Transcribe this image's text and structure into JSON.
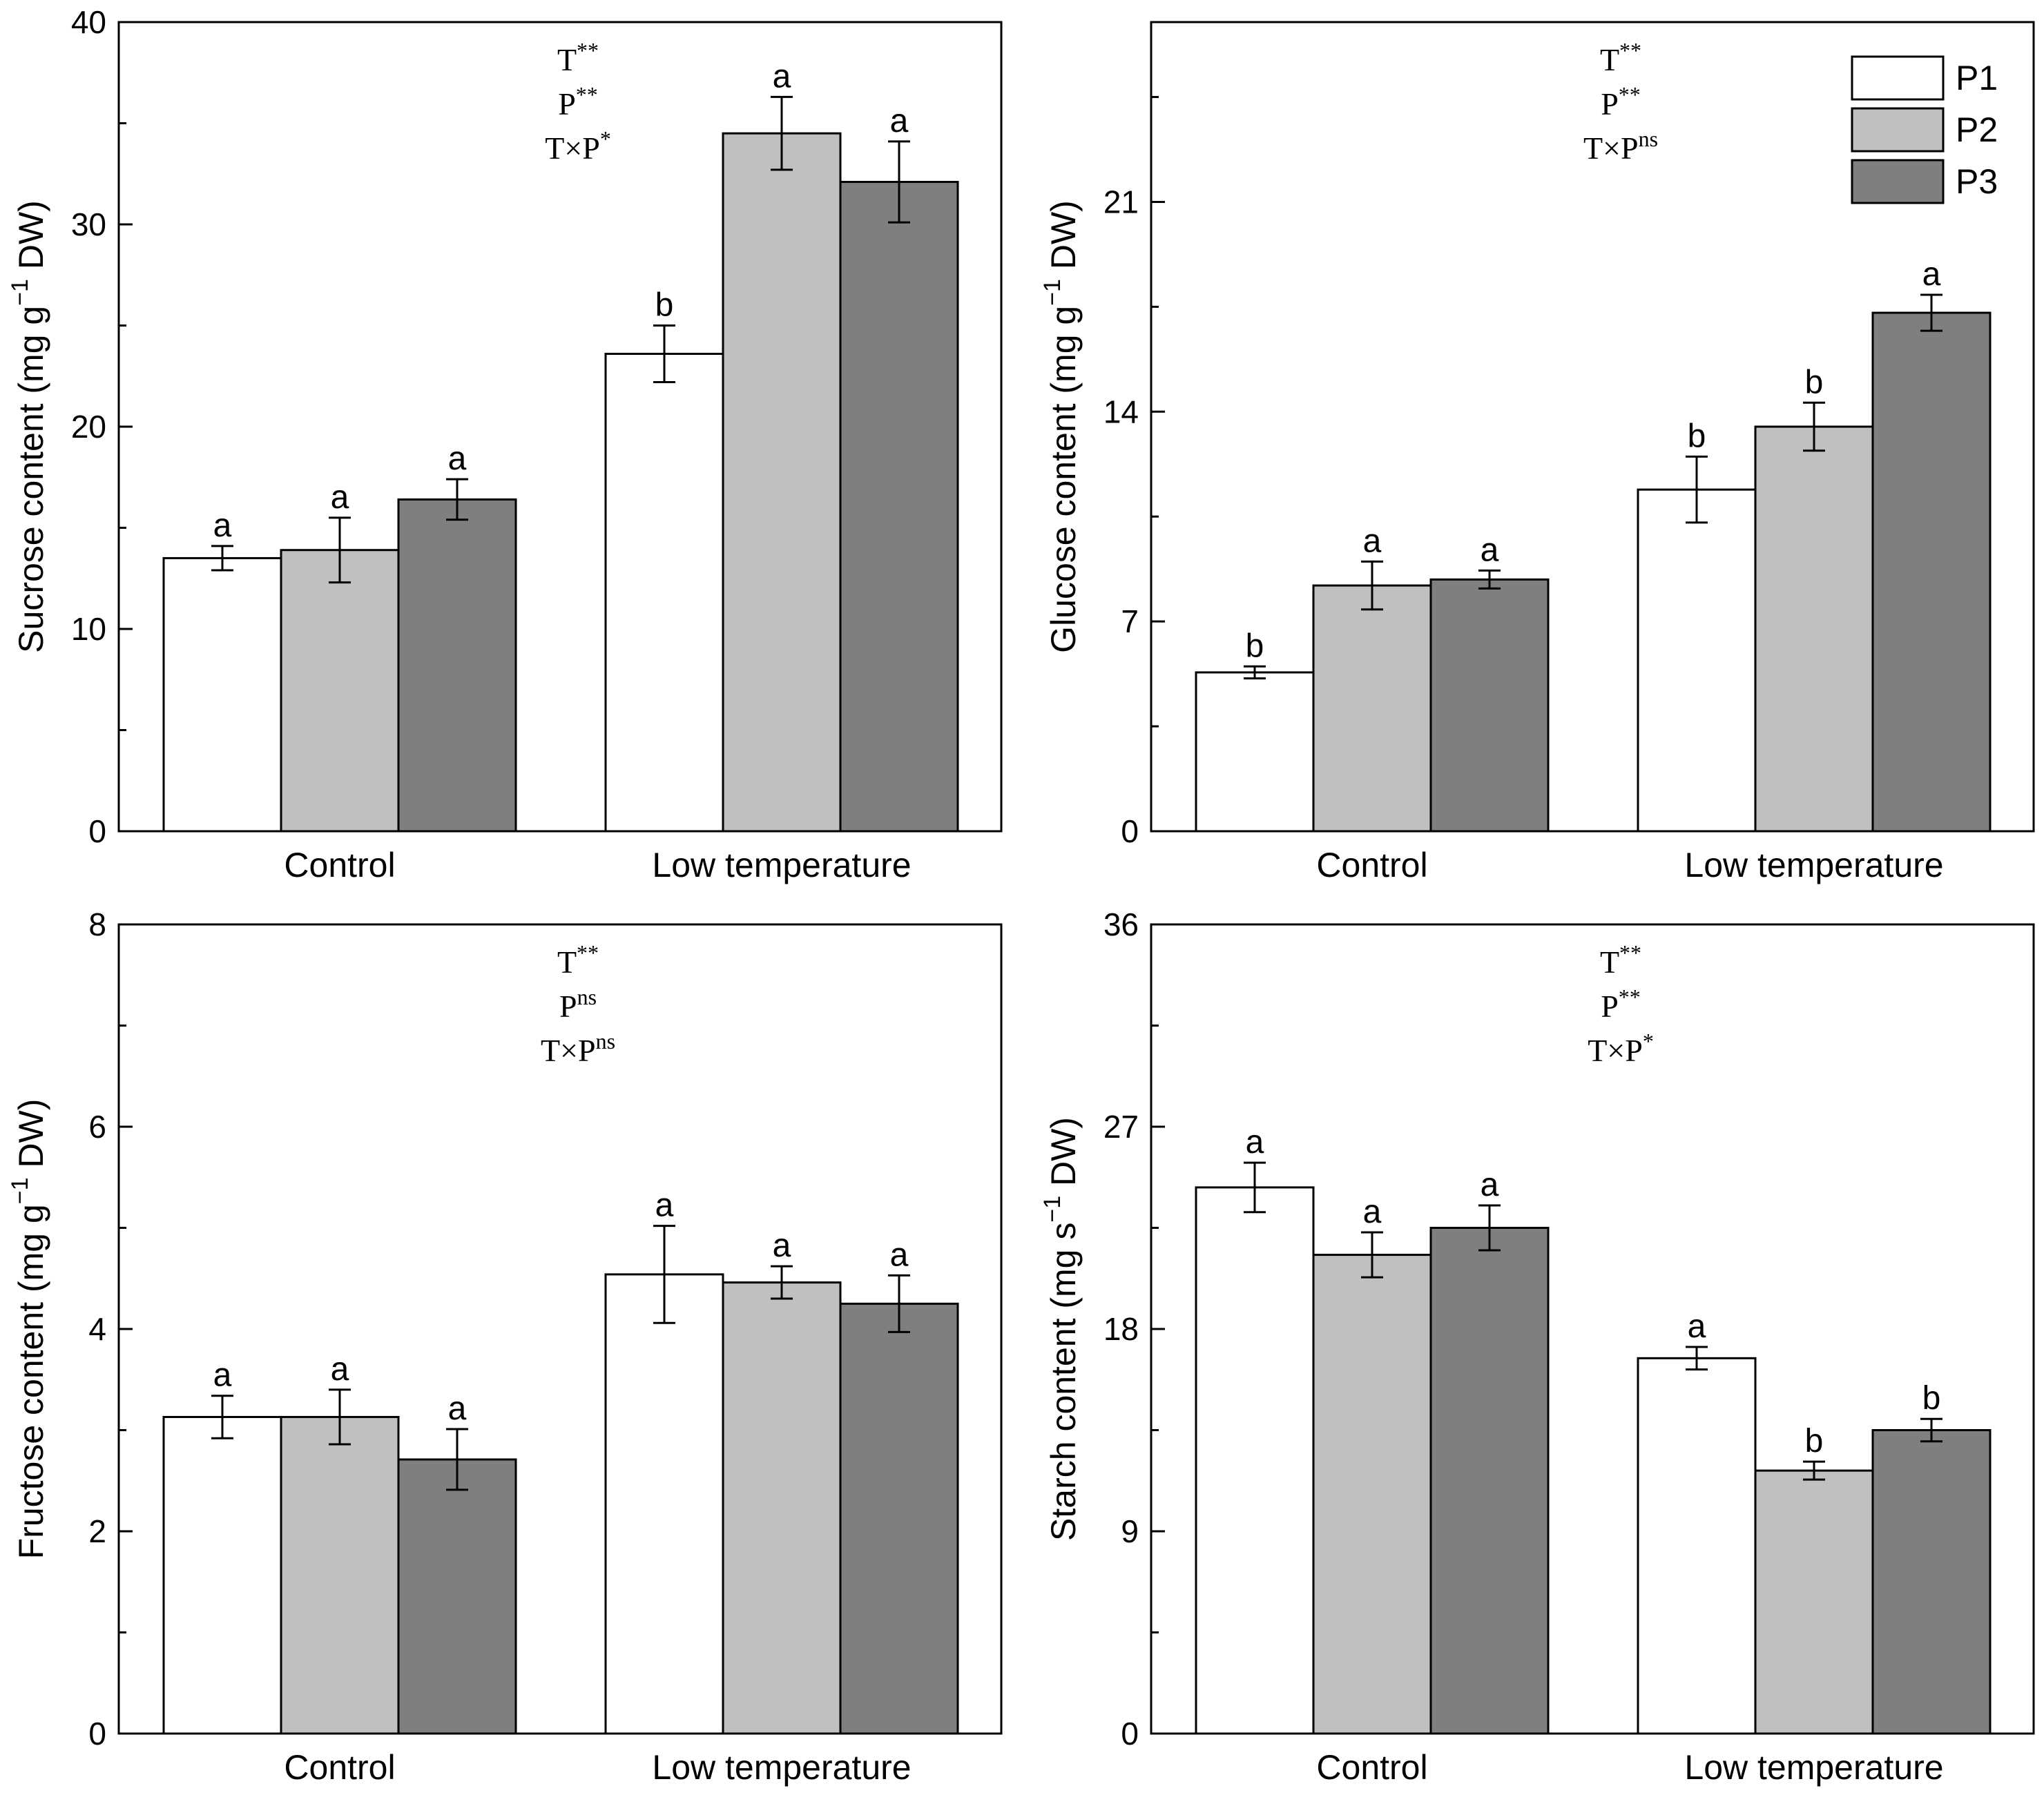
{
  "chart_data": [
    {
      "type": "bar",
      "panel": "top-left",
      "ylabel": "Sucrose content (mg g",
      "ylabel_sup": "−1",
      "ylabel_tail": " DW)",
      "ylim": [
        0,
        40
      ],
      "yticks": [
        0,
        10,
        20,
        30,
        40
      ],
      "categories": [
        "Control",
        "Low temperature"
      ],
      "series": [
        {
          "name": "P1",
          "values": [
            13.5,
            23.6
          ],
          "errors": [
            0.6,
            1.4
          ],
          "letters": [
            "a",
            "b"
          ]
        },
        {
          "name": "P2",
          "values": [
            13.9,
            34.5
          ],
          "errors": [
            1.6,
            1.8
          ],
          "letters": [
            "a",
            "a"
          ]
        },
        {
          "name": "P3",
          "values": [
            16.4,
            32.1
          ],
          "errors": [
            1.0,
            2.0
          ],
          "letters": [
            "a",
            "a"
          ]
        }
      ],
      "stats": [
        {
          "base": "T",
          "sup": "**"
        },
        {
          "base": "P",
          "sup": "**"
        },
        {
          "base": "T×P",
          "sup": "*"
        }
      ],
      "legend": false
    },
    {
      "type": "bar",
      "panel": "top-right",
      "ylabel": "Glucose content (mg g",
      "ylabel_sup": "−1",
      "ylabel_tail": " DW)",
      "ylim": [
        0,
        27
      ],
      "yticks": [
        0,
        7,
        14,
        21
      ],
      "categories": [
        "Control",
        "Low temperature"
      ],
      "series": [
        {
          "name": "P1",
          "values": [
            5.3,
            11.4
          ],
          "errors": [
            0.2,
            1.1
          ],
          "letters": [
            "b",
            "b"
          ]
        },
        {
          "name": "P2",
          "values": [
            8.2,
            13.5
          ],
          "errors": [
            0.8,
            0.8
          ],
          "letters": [
            "a",
            "b"
          ]
        },
        {
          "name": "P3",
          "values": [
            8.4,
            17.3
          ],
          "errors": [
            0.3,
            0.6
          ],
          "letters": [
            "a",
            "a"
          ]
        }
      ],
      "stats": [
        {
          "base": "T",
          "sup": "**"
        },
        {
          "base": "P",
          "sup": "**"
        },
        {
          "base": "T×P",
          "sup": "ns"
        }
      ],
      "legend": true,
      "legend_position": "top-right"
    },
    {
      "type": "bar",
      "panel": "bottom-left",
      "ylabel": "Fructose content (mg g",
      "ylabel_sup": "−1",
      "ylabel_tail": " DW)",
      "ylim": [
        0,
        8
      ],
      "yticks": [
        0,
        2,
        4,
        6,
        8
      ],
      "categories": [
        "Control",
        "Low temperature"
      ],
      "series": [
        {
          "name": "P1",
          "values": [
            3.13,
            4.54
          ],
          "errors": [
            0.21,
            0.48
          ],
          "letters": [
            "a",
            "a"
          ]
        },
        {
          "name": "P2",
          "values": [
            3.13,
            4.46
          ],
          "errors": [
            0.27,
            0.16
          ],
          "letters": [
            "a",
            "a"
          ]
        },
        {
          "name": "P3",
          "values": [
            2.71,
            4.25
          ],
          "errors": [
            0.3,
            0.28
          ],
          "letters": [
            "a",
            "a"
          ]
        }
      ],
      "stats": [
        {
          "base": "T",
          "sup": "**"
        },
        {
          "base": "P",
          "sup": "ns"
        },
        {
          "base": "T×P",
          "sup": "ns"
        }
      ],
      "legend": false
    },
    {
      "type": "bar",
      "panel": "bottom-right",
      "ylabel": "Starch content (mg s",
      "ylabel_sup": "−1",
      "ylabel_tail": " DW)",
      "ylim": [
        0,
        36
      ],
      "yticks": [
        0,
        9,
        18,
        27,
        36
      ],
      "categories": [
        "Control",
        "Low temperature"
      ],
      "series": [
        {
          "name": "P1",
          "values": [
            24.3,
            16.7
          ],
          "errors": [
            1.1,
            0.5
          ],
          "letters": [
            "a",
            "a"
          ]
        },
        {
          "name": "P2",
          "values": [
            21.3,
            11.7
          ],
          "errors": [
            1.0,
            0.4
          ],
          "letters": [
            "a",
            "b"
          ]
        },
        {
          "name": "P3",
          "values": [
            22.5,
            13.5
          ],
          "errors": [
            1.0,
            0.5
          ],
          "letters": [
            "a",
            "b"
          ]
        }
      ],
      "stats": [
        {
          "base": "T",
          "sup": "**"
        },
        {
          "base": "P",
          "sup": "**"
        },
        {
          "base": "T×P",
          "sup": "*"
        }
      ],
      "legend": false
    }
  ],
  "colors": {
    "P1": "#ffffff",
    "P2": "#c0c0c0",
    "P3": "#7f7f7f"
  }
}
